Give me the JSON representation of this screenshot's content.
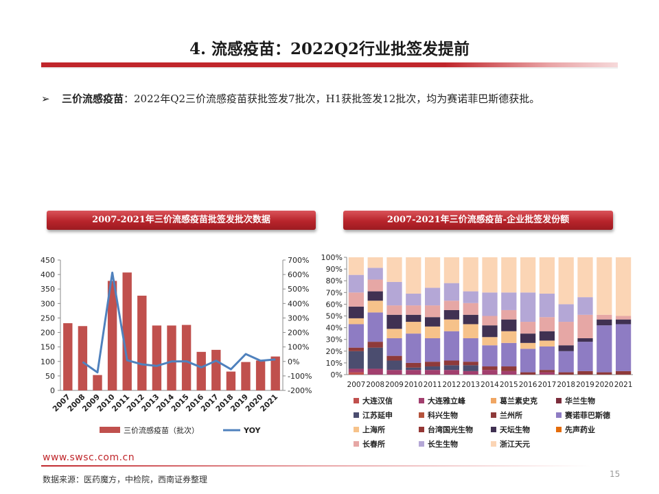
{
  "slide": {
    "title": "4. 流感疫苗：2022Q2行业批签发提前",
    "bullet_marker": "➢",
    "bullet_bold": "三价流感疫苗",
    "bullet_text": "：2022年Q2三价流感疫苗获批签发7批次，H1获批签发12批次，均为赛诺菲巴斯德获批。",
    "url": "www.swsc.com.cn",
    "source": "数据来源：医药魔方，中检院，西南证券整理",
    "page": "15"
  },
  "colors": {
    "brand_red": "#c0262b",
    "bar_red": "#c0504d",
    "yoy_line": "#4f81bd"
  },
  "chart_data": [
    {
      "type": "bar",
      "title": "2007-2021年三价流感疫苗批签发批次数据",
      "categories": [
        "2007",
        "2008",
        "2009",
        "2010",
        "2011",
        "2012",
        "2013",
        "2014",
        "2015",
        "2016",
        "2017",
        "2018",
        "2019",
        "2020",
        "2021"
      ],
      "series": [
        {
          "name": "三价流感疫苗（批次）",
          "type": "bar",
          "axis": "left",
          "values": [
            232,
            222,
            53,
            378,
            407,
            327,
            224,
            224,
            226,
            133,
            140,
            65,
            98,
            103,
            117
          ]
        },
        {
          "name": "YOY",
          "type": "line",
          "axis": "right",
          "values": [
            null,
            -4,
            -76,
            613,
            8,
            -20,
            -31,
            0,
            1,
            -41,
            5,
            -54,
            51,
            5,
            14
          ]
        }
      ],
      "ylim_left": [
        0,
        450
      ],
      "yticks_left": [
        0,
        50,
        100,
        150,
        200,
        250,
        300,
        350,
        400,
        450
      ],
      "ylim_right": [
        -200,
        700
      ],
      "yticks_right": [
        "-200%",
        "-100%",
        "0%",
        "100%",
        "200%",
        "300%",
        "400%",
        "500%",
        "600%",
        "700%"
      ],
      "legend_position": "bottom"
    },
    {
      "type": "bar",
      "stacked": "percent",
      "title": "2007-2021年三价流感疫苗-企业批签发份额",
      "categories": [
        "2007",
        "2008",
        "2009",
        "2010",
        "2011",
        "2012",
        "2013",
        "2014",
        "2015",
        "2016",
        "2017",
        "2018",
        "2019",
        "2020",
        "2021"
      ],
      "yticks": [
        "0%",
        "10%",
        "20%",
        "30%",
        "40%",
        "50%",
        "60%",
        "70%",
        "80%",
        "90%",
        "100%"
      ],
      "legend_position": "bottom",
      "series": [
        {
          "name": "大连汉信",
          "color": "#c0504d",
          "values": [
            2,
            0,
            0,
            0,
            0,
            0,
            0,
            0,
            0,
            0,
            0,
            0,
            0,
            0,
            0
          ]
        },
        {
          "name": "大连雅立峰",
          "color": "#a23f6e",
          "values": [
            3,
            5,
            4,
            4,
            4,
            4,
            3,
            4,
            3,
            0,
            2,
            0,
            0,
            0,
            0
          ]
        },
        {
          "name": "葛兰素史克",
          "color": "#f0a663",
          "values": [
            0,
            0,
            0,
            0,
            0,
            0,
            0,
            0,
            0,
            0,
            0,
            0,
            0,
            0,
            0
          ]
        },
        {
          "name": "华兰生物",
          "color": "#7b2c3b",
          "values": [
            0,
            0,
            0,
            0,
            0,
            0,
            0,
            0,
            0,
            0,
            0,
            0,
            0,
            0,
            0
          ]
        },
        {
          "name": "江苏延申",
          "color": "#4b4d6f",
          "values": [
            15,
            18,
            8,
            2,
            3,
            4,
            5,
            0,
            0,
            0,
            0,
            0,
            0,
            0,
            0
          ]
        },
        {
          "name": "科兴生物",
          "color": "#b5533c",
          "values": [
            0,
            0,
            0,
            0,
            0,
            0,
            0,
            0,
            0,
            0,
            0,
            0,
            0,
            0,
            0
          ]
        },
        {
          "name": "兰州所",
          "color": "#8e3a3a",
          "values": [
            3,
            5,
            4,
            4,
            4,
            4,
            3,
            3,
            4,
            2,
            2,
            2,
            3,
            2,
            3
          ]
        },
        {
          "name": "赛诺菲巴斯德",
          "color": "#8e7cc3",
          "values": [
            20,
            25,
            15,
            25,
            20,
            25,
            20,
            18,
            20,
            20,
            20,
            18,
            25,
            40,
            40
          ]
        },
        {
          "name": "上海所",
          "color": "#f6c28a",
          "values": [
            5,
            10,
            8,
            10,
            10,
            10,
            12,
            7,
            10,
            5,
            5,
            0,
            0,
            0,
            0
          ]
        },
        {
          "name": "台湾国光生物",
          "color": "#953735",
          "values": [
            0,
            0,
            0,
            0,
            0,
            0,
            0,
            0,
            0,
            0,
            0,
            0,
            0,
            0,
            0
          ]
        },
        {
          "name": "天坛生物",
          "color": "#403152",
          "values": [
            10,
            8,
            12,
            6,
            8,
            8,
            8,
            10,
            10,
            8,
            8,
            5,
            3,
            5,
            4
          ]
        },
        {
          "name": "先声药业",
          "color": "#e46c0a",
          "values": [
            0,
            0,
            0,
            0,
            0,
            0,
            0,
            0,
            0,
            0,
            0,
            0,
            0,
            0,
            0
          ]
        },
        {
          "name": "长春所",
          "color": "#e6a7a5",
          "values": [
            12,
            10,
            8,
            8,
            10,
            8,
            10,
            8,
            8,
            10,
            12,
            20,
            20,
            4,
            3
          ]
        },
        {
          "name": "长生生物",
          "color": "#b4a7d6",
          "values": [
            15,
            10,
            20,
            10,
            15,
            15,
            10,
            20,
            15,
            25,
            20,
            15,
            15,
            0,
            0
          ]
        },
        {
          "name": "浙江天元",
          "color": "#fbd5b5",
          "values": [
            15,
            9,
            21,
            31,
            26,
            22,
            29,
            30,
            30,
            30,
            31,
            40,
            34,
            49,
            50
          ]
        }
      ]
    }
  ]
}
